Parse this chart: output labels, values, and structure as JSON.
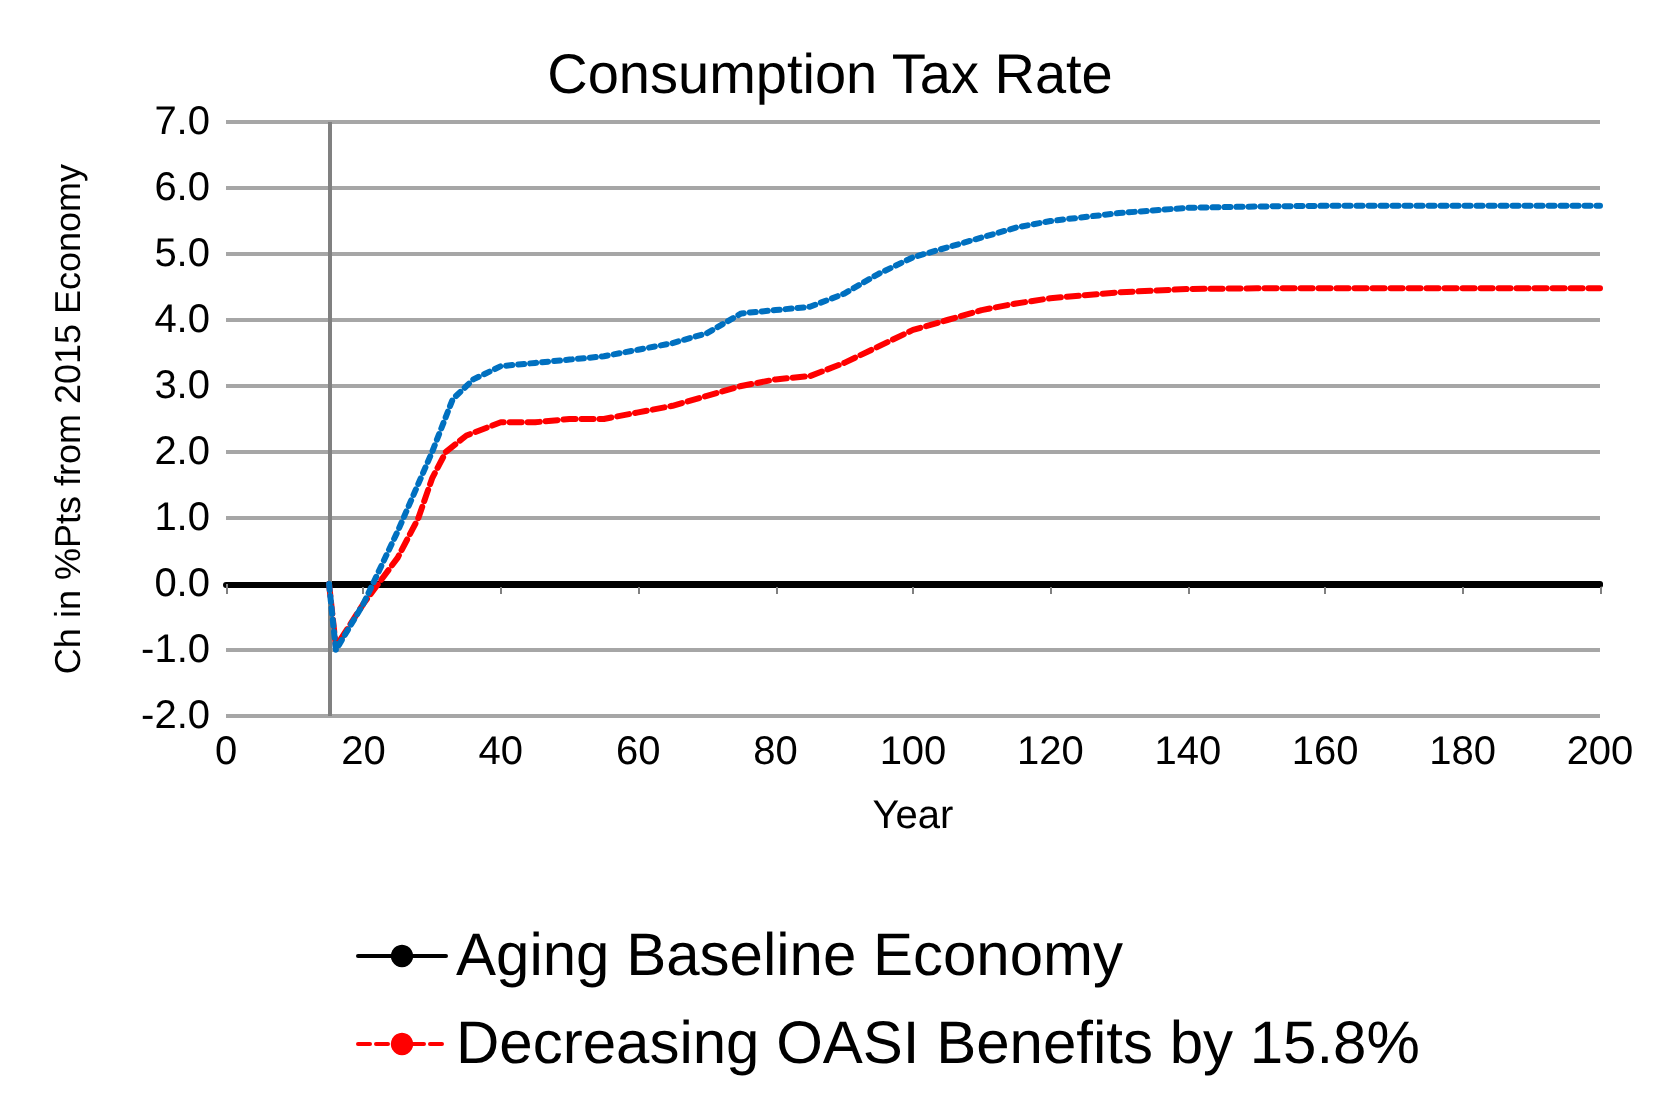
{
  "chart_data": {
    "type": "line",
    "title": "Consumption Tax Rate",
    "xlabel": "Year",
    "ylabel": "Ch in %Pts from 2015 Economy",
    "xlim": [
      0,
      200
    ],
    "xticks": [
      0,
      20,
      40,
      60,
      80,
      100,
      120,
      140,
      160,
      180,
      200
    ],
    "ylim": [
      -2,
      7
    ],
    "yticks": [
      {
        "value": -2,
        "label": "-2.0"
      },
      {
        "value": -1,
        "label": "-1.0"
      },
      {
        "value": 0,
        "label": "0.0"
      },
      {
        "value": 1,
        "label": "1.0"
      },
      {
        "value": 2,
        "label": "2.0"
      },
      {
        "value": 3,
        "label": "3.0"
      },
      {
        "value": 4,
        "label": "4.0"
      },
      {
        "value": 5,
        "label": "5.0"
      },
      {
        "value": 6,
        "label": "6.0"
      },
      {
        "value": 7,
        "label": "7.0"
      }
    ],
    "grid": "y",
    "legend": "bottom",
    "marker": "none",
    "ref_lines": [
      {
        "axis": "x",
        "value": 15,
        "color": "#808080"
      }
    ],
    "series": [
      {
        "name": "Aging Baseline Economy",
        "color": "#000000",
        "line_style": "solid",
        "x": [
          15,
          200
        ],
        "values": [
          0,
          0
        ]
      },
      {
        "name": "Decreasing OASI Benefits by 15.8%",
        "color": "#ff0000",
        "line_style": "dashed",
        "x": [
          15,
          16,
          20,
          25,
          28,
          30,
          32,
          35,
          40,
          45,
          50,
          55,
          60,
          65,
          70,
          75,
          80,
          85,
          90,
          95,
          100,
          105,
          110,
          115,
          120,
          130,
          140,
          150,
          200
        ],
        "values": [
          0,
          -0.95,
          -0.3,
          0.4,
          1.0,
          1.6,
          2.0,
          2.25,
          2.45,
          2.45,
          2.5,
          2.5,
          2.6,
          2.7,
          2.85,
          3.0,
          3.1,
          3.15,
          3.35,
          3.6,
          3.85,
          4.0,
          4.15,
          4.25,
          4.33,
          4.42,
          4.47,
          4.48,
          4.48
        ]
      },
      {
        "color": "#0070c0",
        "line_style": "dotted",
        "x": [
          15,
          16,
          20,
          25,
          30,
          33,
          36,
          40,
          45,
          50,
          55,
          60,
          65,
          70,
          75,
          80,
          85,
          90,
          95,
          100,
          105,
          110,
          115,
          120,
          130,
          140,
          150,
          160,
          200
        ],
        "values": [
          0,
          -1.0,
          -0.3,
          0.8,
          2.0,
          2.8,
          3.1,
          3.3,
          3.35,
          3.4,
          3.45,
          3.55,
          3.65,
          3.8,
          4.1,
          4.15,
          4.2,
          4.4,
          4.7,
          4.95,
          5.1,
          5.25,
          5.4,
          5.5,
          5.62,
          5.7,
          5.72,
          5.73,
          5.73
        ]
      }
    ]
  }
}
